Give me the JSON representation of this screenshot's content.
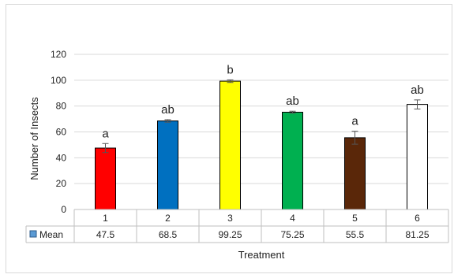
{
  "chart_data": {
    "type": "bar",
    "title": "",
    "xlabel": "Treatment",
    "ylabel": "Number of Insects",
    "ylim": [
      0,
      120
    ],
    "yticks": [
      "0",
      "20",
      "40",
      "60",
      "80",
      "100",
      "120"
    ],
    "grid": true,
    "categories": [
      "1",
      "2",
      "3",
      "4",
      "5",
      "6"
    ],
    "series": [
      {
        "name": "Mean",
        "values": [
          47.5,
          68.5,
          99.25,
          75.25,
          55.5,
          81.25
        ],
        "value_labels": [
          "47.5",
          "68.5",
          "99.25",
          "75.25",
          "55.5",
          "81.25"
        ],
        "error": [
          3.5,
          1.0,
          1.0,
          0.75,
          5.0,
          3.5
        ],
        "colors": [
          "#ff0000",
          "#0070c0",
          "#ffff00",
          "#00b050",
          "#5a2709",
          "#ffffff"
        ]
      }
    ],
    "annotations": [
      "a",
      "ab",
      "b",
      "ab",
      "a",
      "ab"
    ],
    "legend": {
      "position": "data-table",
      "marker_color": "#5b9bd5"
    }
  }
}
